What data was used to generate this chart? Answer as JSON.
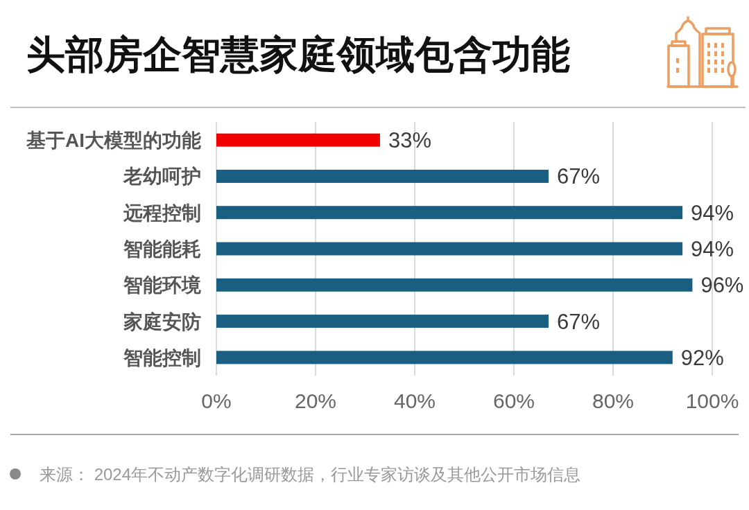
{
  "chart_data": {
    "type": "bar",
    "orientation": "horizontal",
    "title": "头部房企智慧家庭领域包含功能",
    "categories": [
      "基于AI大模型的功能",
      "老幼呵护",
      "远程控制",
      "智能能耗",
      "智能环境",
      "家庭安防",
      "智能控制"
    ],
    "values": [
      33,
      67,
      94,
      94,
      96,
      67,
      92
    ],
    "colors": [
      "#f20000",
      "#1a5e82",
      "#1a5e82",
      "#1a5e82",
      "#1a5e82",
      "#1a5e82",
      "#1a5e82"
    ],
    "value_labels": [
      "33%",
      "67%",
      "94%",
      "94%",
      "96%",
      "67%",
      "92%"
    ],
    "xlim": [
      0,
      100
    ],
    "xticks": [
      {
        "value": 0,
        "label": "0%"
      },
      {
        "value": 20,
        "label": "20%"
      },
      {
        "value": 40,
        "label": "40%"
      },
      {
        "value": 60,
        "label": "60%"
      },
      {
        "value": 80,
        "label": "80%"
      },
      {
        "value": 100,
        "label": "100%"
      }
    ],
    "grid": "x",
    "annotations": [
      "来源： 2024年不动产数字化调研数据，行业专家访谈及其他公开市场信息"
    ]
  }
}
